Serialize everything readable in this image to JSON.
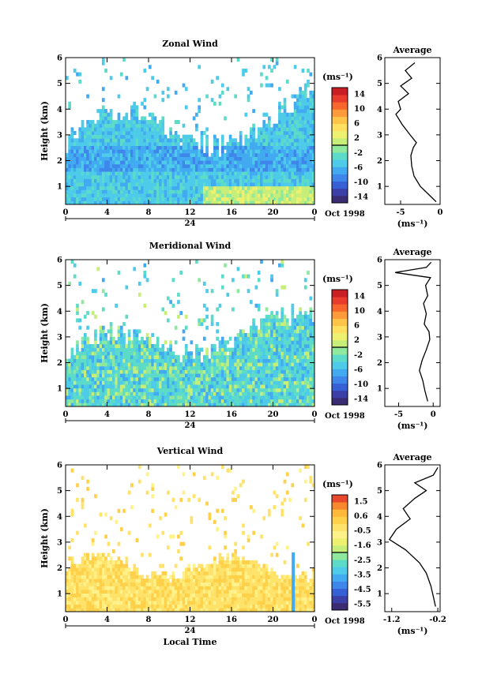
{
  "chart_data": [
    {
      "type": "heatmap",
      "title": "Zonal Wind",
      "xlabel": "",
      "ylabel": "Height (km)",
      "xlim": [
        0,
        24
      ],
      "ylim": [
        0.3,
        6
      ],
      "x_ticks": [
        "0",
        "4",
        "8",
        "12",
        "16",
        "20",
        "0"
      ],
      "y_ticks": [
        "1",
        "2",
        "3",
        "4",
        "5",
        "6"
      ],
      "date_label": "24",
      "date_suffix": "Oct 1998",
      "colorbar": {
        "unit": "(ms⁻¹)",
        "labels": [
          "14",
          "10",
          "6",
          "2",
          "-2",
          "-6",
          "-10",
          "-14"
        ],
        "range": [
          -16,
          16
        ]
      },
      "profile": {
        "title": "Average",
        "xlabel": "(ms⁻¹)",
        "x_ticks": [
          "-5",
          "0"
        ],
        "xlim": [
          -7,
          0
        ],
        "points": [
          [
            -0.5,
            0.4
          ],
          [
            -1.5,
            0.7
          ],
          [
            -2.5,
            1.0
          ],
          [
            -3.3,
            1.4
          ],
          [
            -3.6,
            1.8
          ],
          [
            -3.7,
            2.2
          ],
          [
            -3.4,
            2.5
          ],
          [
            -3.0,
            2.7
          ],
          [
            -3.8,
            3.0
          ],
          [
            -4.8,
            3.4
          ],
          [
            -5.6,
            3.8
          ],
          [
            -5.0,
            4.0
          ],
          [
            -5.3,
            4.3
          ],
          [
            -4.0,
            4.6
          ],
          [
            -5.0,
            4.9
          ],
          [
            -3.6,
            5.2
          ],
          [
            -4.4,
            5.5
          ],
          [
            -3.2,
            5.8
          ]
        ]
      }
    },
    {
      "type": "heatmap",
      "title": "Meridional Wind",
      "xlabel": "",
      "ylabel": "Height (km)",
      "xlim": [
        0,
        24
      ],
      "ylim": [
        0.3,
        6
      ],
      "x_ticks": [
        "0",
        "4",
        "8",
        "12",
        "16",
        "20",
        "0"
      ],
      "y_ticks": [
        "1",
        "2",
        "3",
        "4",
        "5",
        "6"
      ],
      "date_label": "24",
      "date_suffix": "Oct 1998",
      "colorbar": {
        "unit": "(ms⁻¹)",
        "labels": [
          "14",
          "10",
          "6",
          "2",
          "-2",
          "-6",
          "-10",
          "-14"
        ],
        "range": [
          -16,
          16
        ]
      },
      "profile": {
        "title": "Average",
        "xlabel": "(ms⁻¹)",
        "x_ticks": [
          "-5",
          "0"
        ],
        "xlim": [
          -7,
          1
        ],
        "points": [
          [
            -0.8,
            0.5
          ],
          [
            -1.2,
            0.9
          ],
          [
            -1.5,
            1.3
          ],
          [
            -2.0,
            1.7
          ],
          [
            -1.6,
            2.1
          ],
          [
            -1.0,
            2.5
          ],
          [
            -0.5,
            2.9
          ],
          [
            -0.6,
            3.2
          ],
          [
            -1.3,
            3.5
          ],
          [
            -1.0,
            3.9
          ],
          [
            -1.4,
            4.3
          ],
          [
            -0.8,
            4.6
          ],
          [
            -1.1,
            5.0
          ],
          [
            -0.4,
            5.3
          ],
          [
            -5.5,
            5.5
          ],
          [
            -1.0,
            5.7
          ],
          [
            -0.3,
            5.9
          ]
        ]
      }
    },
    {
      "type": "heatmap",
      "title": "Vertical Wind",
      "xlabel": "Local Time",
      "ylabel": "Height (km)",
      "xlim": [
        0,
        24
      ],
      "ylim": [
        0.3,
        6
      ],
      "x_ticks": [
        "0",
        "4",
        "8",
        "12",
        "16",
        "20",
        "0"
      ],
      "y_ticks": [
        "1",
        "2",
        "3",
        "4",
        "5",
        "6"
      ],
      "date_label": "24",
      "date_suffix": "Oct 1998",
      "colorbar": {
        "unit": "(ms⁻¹)",
        "labels": [
          "1.5",
          "0.6",
          "-0.5",
          "-1.6",
          "-2.5",
          "-3.5",
          "-4.5",
          "-5.5"
        ],
        "range": [
          -6,
          2
        ]
      },
      "profile": {
        "title": "Average",
        "xlabel": "(ms⁻¹)",
        "x_ticks": [
          "-1.2",
          "-0.2"
        ],
        "xlim": [
          -1.35,
          -0.15
        ],
        "points": [
          [
            -0.25,
            0.5
          ],
          [
            -0.3,
            0.9
          ],
          [
            -0.35,
            1.3
          ],
          [
            -0.45,
            1.8
          ],
          [
            -0.6,
            2.2
          ],
          [
            -0.9,
            2.7
          ],
          [
            -1.25,
            3.1
          ],
          [
            -1.1,
            3.5
          ],
          [
            -0.8,
            3.9
          ],
          [
            -0.95,
            4.3
          ],
          [
            -0.7,
            4.7
          ],
          [
            -0.45,
            5.0
          ],
          [
            -0.7,
            5.3
          ],
          [
            -0.3,
            5.6
          ],
          [
            -0.2,
            5.9
          ]
        ]
      }
    }
  ]
}
